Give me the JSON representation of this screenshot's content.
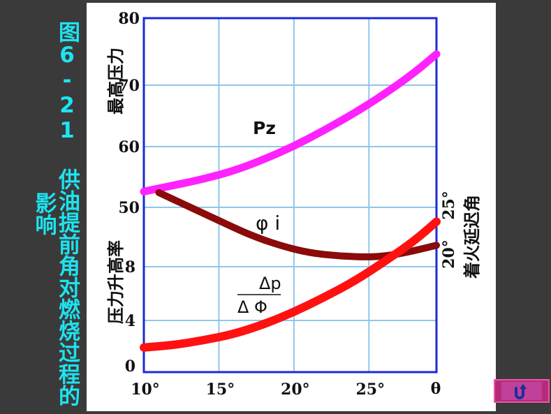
{
  "slide": {
    "title": "图6-21 供油提前角对燃烧过程的影响"
  },
  "colors": {
    "background": "#3a3a3a",
    "title": "#1ee3f0",
    "grid": "#8fc6ea",
    "frame": "#1a2ad8",
    "pz": "#ff22ff",
    "phi": "#8b0a0a",
    "dp": "#ff1111"
  },
  "chart_data": {
    "type": "line",
    "title": "",
    "x": {
      "label": "θ",
      "ticks": [
        "10°",
        "15°",
        "20°",
        "25°"
      ],
      "range": [
        10,
        29.5
      ]
    },
    "left_axis": {
      "upper": {
        "label": "最高压力",
        "ticks": [
          "50",
          "60",
          "70",
          "80"
        ],
        "range": [
          50,
          80
        ]
      },
      "lower": {
        "label": "压力升高率",
        "ticks": [
          "0",
          "4",
          "8"
        ],
        "range": [
          0,
          10
        ]
      }
    },
    "right_axis": {
      "label": "着火延迟角",
      "ticks": [
        "20°",
        "25°"
      ]
    },
    "series": [
      {
        "name": "Pz",
        "axis": "pressure",
        "color_key": "pz",
        "x": [
          10,
          12,
          14,
          16,
          18,
          20,
          22,
          24,
          26,
          28,
          29.5
        ],
        "y": [
          52.5,
          53.5,
          54.5,
          55.8,
          57.6,
          59.7,
          62.2,
          64.9,
          67.9,
          71.3,
          74.3
        ]
      },
      {
        "name": "φi",
        "axis": "ignition_delay",
        "color_key": "phi",
        "x": [
          11,
          13,
          15,
          17,
          19,
          21,
          23,
          25,
          26,
          27,
          28,
          29.5
        ],
        "y": [
          26.5,
          25.2,
          23.9,
          22.6,
          21.6,
          20.9,
          20.6,
          20.5,
          20.6,
          20.8,
          21.1,
          21.6
        ]
      },
      {
        "name": "Δp/ΔΦ",
        "axis": "pressure_rise",
        "color_key": "dp",
        "x": [
          10,
          12,
          14,
          16,
          18,
          20,
          22,
          24,
          26,
          28,
          29.5
        ],
        "y": [
          1.5,
          1.7,
          2.1,
          2.6,
          3.4,
          4.4,
          5.6,
          6.9,
          8.5,
          10.2,
          11.8
        ]
      }
    ],
    "curve_labels": {
      "pz": "Pz",
      "phi": "φ i",
      "dp_top": "Δp",
      "dp_bottom": "Δ Φ"
    },
    "grid": true
  }
}
